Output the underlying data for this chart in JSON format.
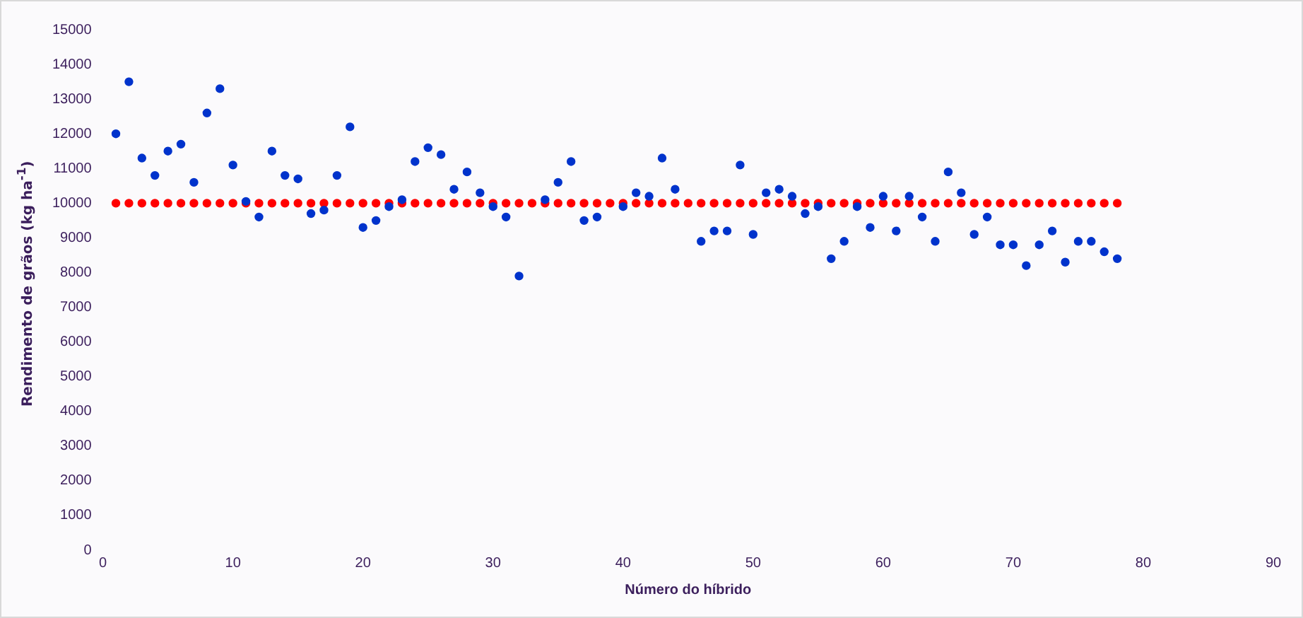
{
  "chart_data": {
    "type": "scatter",
    "xlabel": "Número do híbrido",
    "ylabel": "Rendimento de grãos (kg ha$^{-1}$)",
    "xlim": [
      0,
      90
    ],
    "xticks": [
      0,
      10,
      20,
      30,
      40,
      50,
      60,
      70,
      80,
      90
    ],
    "ylim": [
      0,
      15000
    ],
    "yticks": [
      0,
      1000,
      2000,
      3000,
      4000,
      5000,
      6000,
      7000,
      8000,
      9000,
      10000,
      11000,
      12000,
      13000,
      14000,
      15000
    ],
    "grid": false,
    "legend": false,
    "marker": "circle",
    "x": [
      1,
      2,
      3,
      4,
      5,
      6,
      7,
      8,
      9,
      10,
      11,
      12,
      13,
      14,
      15,
      16,
      17,
      18,
      19,
      20,
      21,
      22,
      23,
      24,
      25,
      26,
      27,
      28,
      29,
      30,
      31,
      32,
      33,
      34,
      35,
      36,
      37,
      38,
      39,
      40,
      41,
      42,
      43,
      44,
      45,
      46,
      47,
      48,
      49,
      50,
      51,
      52,
      53,
      54,
      55,
      56,
      57,
      58,
      59,
      60,
      61,
      62,
      63,
      64,
      65,
      66,
      67,
      68,
      69,
      70,
      71,
      72,
      73,
      74,
      75,
      76,
      77,
      78
    ],
    "series": [
      {
        "color": "#ff0000",
        "values": [
          10000,
          10000,
          10000,
          10000,
          10000,
          10000,
          10000,
          10000,
          10000,
          10000,
          10000,
          10000,
          10000,
          10000,
          10000,
          10000,
          10000,
          10000,
          10000,
          10000,
          10000,
          10000,
          10000,
          10000,
          10000,
          10000,
          10000,
          10000,
          10000,
          10000,
          10000,
          10000,
          10000,
          10000,
          10000,
          10000,
          10000,
          10000,
          10000,
          10000,
          10000,
          10000,
          10000,
          10000,
          10000,
          10000,
          10000,
          10000,
          10000,
          10000,
          10000,
          10000,
          10000,
          10000,
          10000,
          10000,
          10000,
          10000,
          10000,
          10000,
          10000,
          10000,
          10000,
          10000,
          10000,
          10000,
          10000,
          10000,
          10000,
          10000,
          10000,
          10000,
          10000,
          10000,
          10000,
          10000,
          10000,
          10000
        ]
      },
      {
        "color": "#0033cc",
        "values": [
          12000,
          13500,
          11300,
          10800,
          11500,
          11700,
          10600,
          12600,
          13300,
          11100,
          10050,
          9600,
          11500,
          10800,
          10700,
          9700,
          9800,
          10800,
          12200,
          9300,
          9500,
          9900,
          10100,
          11200,
          11600,
          11400,
          10400,
          10900,
          10300,
          9900,
          9600,
          7900,
          null,
          10100,
          10600,
          11200,
          9500,
          9600,
          null,
          9900,
          10300,
          10200,
          11300,
          10400,
          null,
          8900,
          9200,
          9200,
          11100,
          9100,
          10300,
          10400,
          10200,
          9700,
          9900,
          8400,
          8900,
          9900,
          9300,
          10200,
          9200,
          10200,
          9600,
          8900,
          10900,
          10300,
          9100,
          9600,
          8800,
          8800,
          8200,
          8800,
          9200,
          8300,
          8900,
          8900,
          8600,
          8400
        ]
      }
    ]
  }
}
